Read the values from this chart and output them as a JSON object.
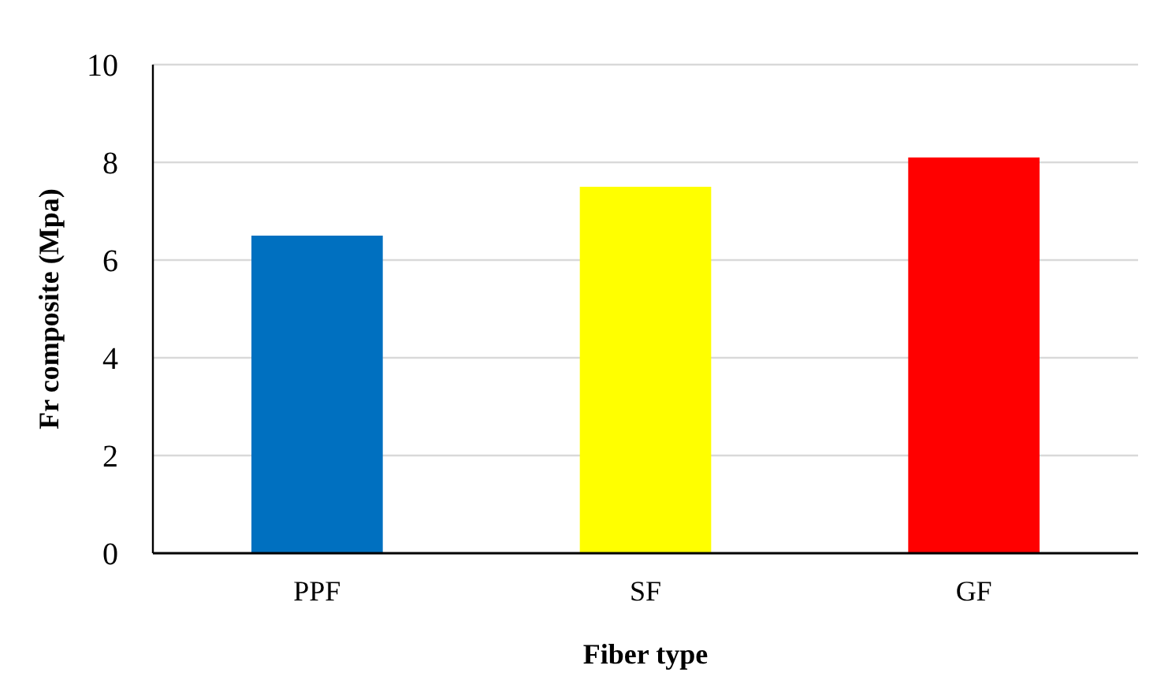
{
  "chart_data": {
    "type": "bar",
    "xlabel": "Fiber type",
    "ylabel": "Fr composite (Mpa)",
    "categories": [
      "PPF",
      "SF",
      "GF"
    ],
    "values": [
      6.5,
      7.5,
      8.1
    ],
    "colors": [
      "#0070c0",
      "#ffff00",
      "#ff0000"
    ],
    "ylim": [
      0,
      10
    ],
    "yticks": [
      0,
      2,
      4,
      6,
      8,
      10
    ],
    "grid": "y"
  }
}
